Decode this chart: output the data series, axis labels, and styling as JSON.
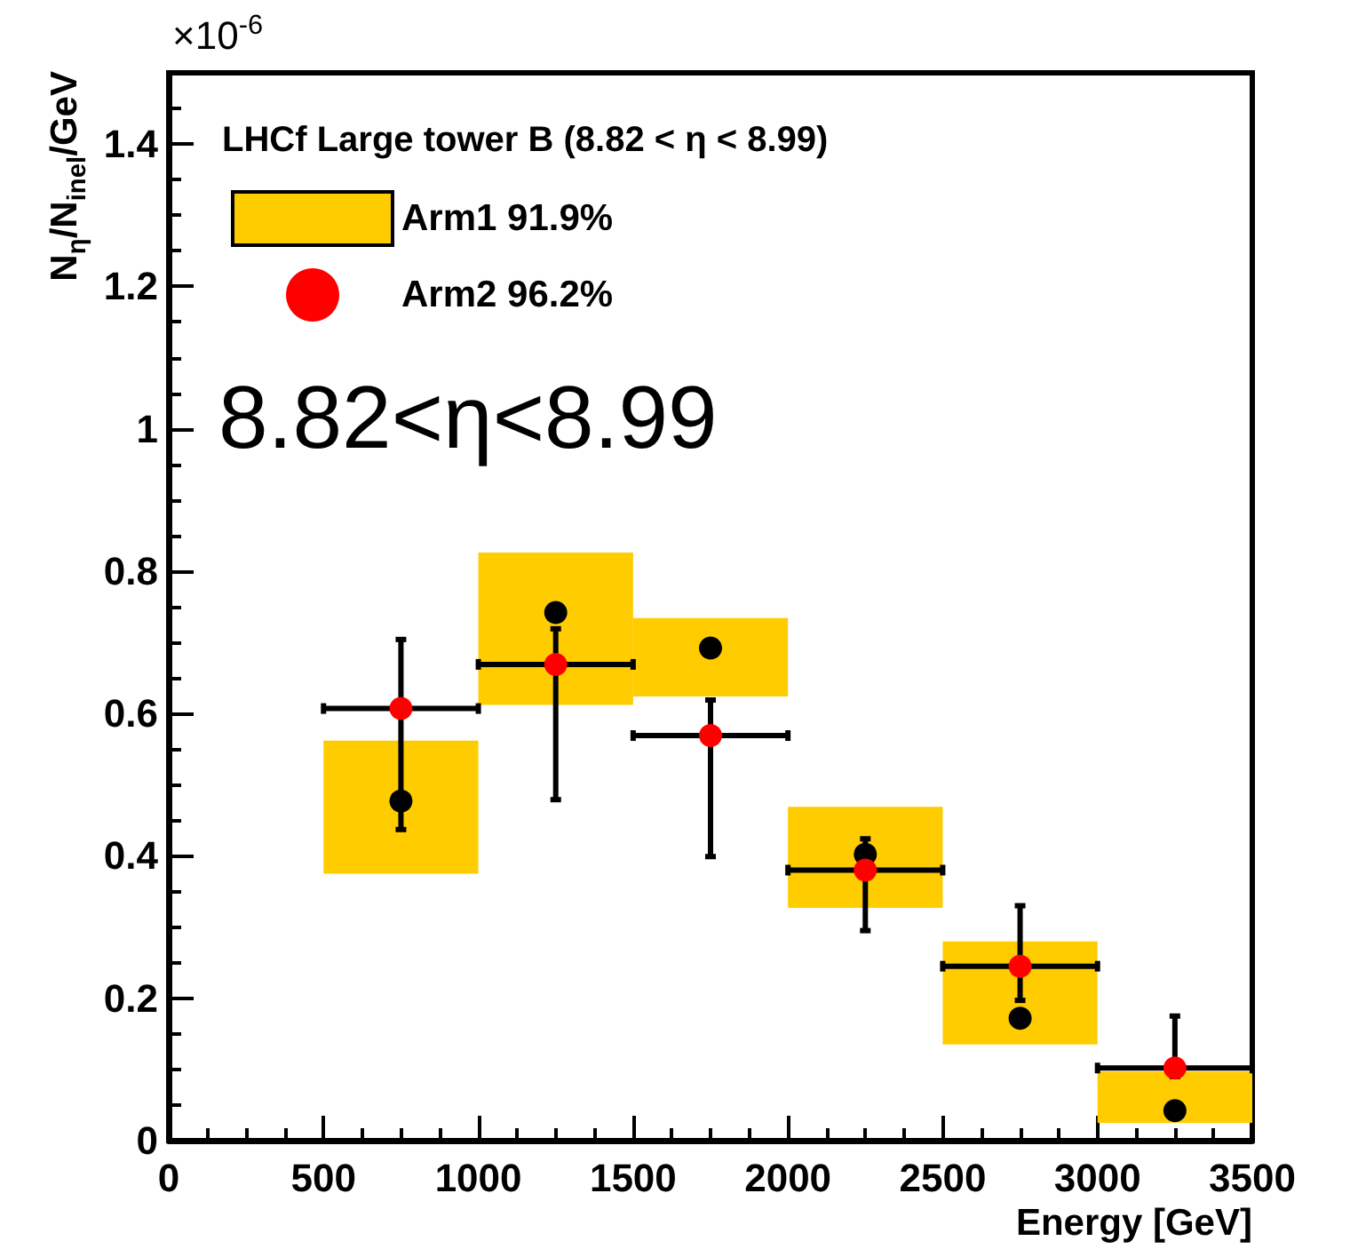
{
  "chart_data": {
    "type": "scatter",
    "xlabel": "Energy [GeV]",
    "ylabel": "N$_{η}$/N$_{inel}$/GeV",
    "legend_title": "LHCf Large tower B (8.82 < η < 8.99)",
    "annotations": [
      "×10$^{-6}$",
      "8.82<η<8.99"
    ],
    "x": [
      750,
      1250,
      1750,
      2250,
      2750,
      3250
    ],
    "series": [
      {
        "type": "bar",
        "name": "Arm1 91.9%",
        "color": "#ffcc00",
        "base": [
          0.375,
          0.612,
          0.624,
          0.327,
          0.135,
          0.025
        ],
        "values": [
          0.187,
          0.214,
          0.11,
          0.142,
          0.145,
          0.072
        ]
      },
      {
        "color": "#000000",
        "values": [
          0.477,
          0.742,
          0.692,
          0.402,
          0.172,
          0.042
        ]
      },
      {
        "name": "Arm2 96.2%",
        "color": "#ff0000",
        "values": [
          0.607,
          0.669,
          0.569,
          0.38,
          0.245,
          0.102
        ],
        "errors": [
          [
            0.437,
            0.704
          ],
          [
            0.479,
            0.719
          ],
          [
            0.399,
            0.619
          ],
          [
            0.295,
            0.424
          ],
          [
            0.197,
            0.33
          ],
          [
            0.09,
            0.175
          ]
        ],
        "xerrors": [
          250,
          250,
          250,
          250,
          250,
          250
        ]
      }
    ],
    "marker": "circle",
    "legend": "top left",
    "grid": false,
    "xlim": [
      0,
      3500
    ],
    "xticks": [
      0,
      500,
      1000,
      1500,
      2000,
      2500,
      3000,
      3500
    ],
    "ylim": [
      0,
      1.5
    ],
    "yticks": [
      0,
      0.2,
      0.4,
      0.6,
      0.8,
      1,
      1.2,
      1.4
    ]
  }
}
